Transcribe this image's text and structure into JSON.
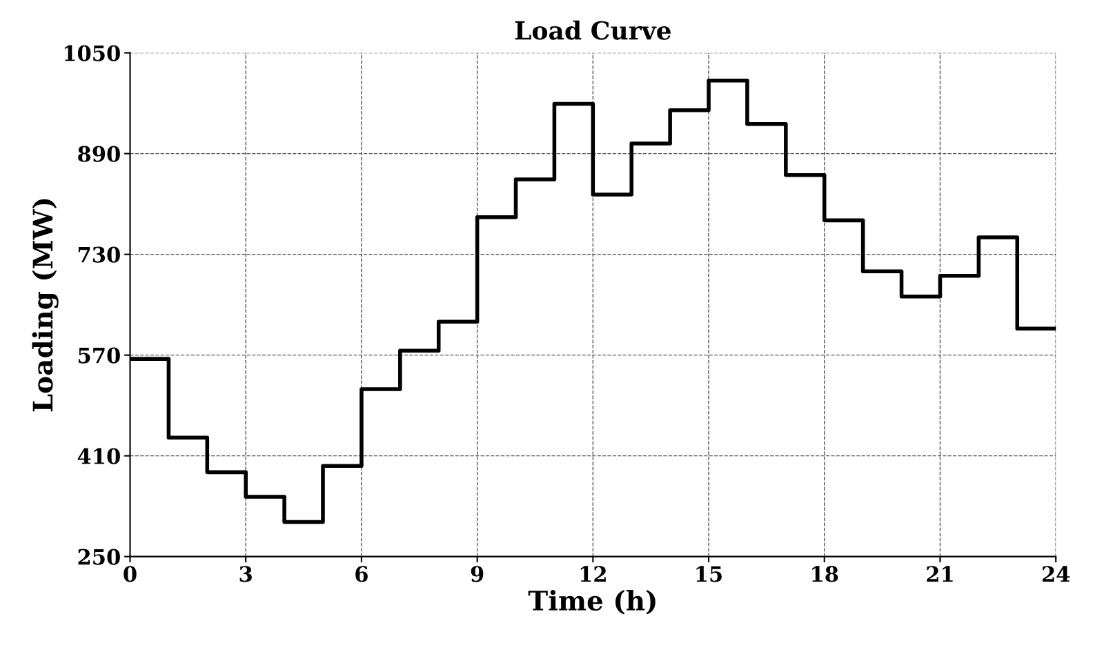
{
  "chart_data": {
    "type": "step",
    "title": "Load Curve",
    "xlabel": "Time (h)",
    "ylabel": "Loading (MW)",
    "x": [
      0,
      1,
      2,
      3,
      4,
      5,
      6,
      7,
      8,
      9,
      10,
      11,
      12,
      13,
      14,
      15,
      16,
      17,
      18,
      19,
      20,
      21,
      22,
      23,
      24
    ],
    "series": [
      {
        "color": "#000000",
        "values": [
          564,
          439,
          384,
          345,
          305,
          394,
          516,
          577,
          623,
          789,
          849,
          969,
          825,
          906,
          959,
          1006,
          937,
          856,
          784,
          703,
          663,
          696,
          757,
          612,
          612
        ]
      }
    ],
    "xlim": [
      0,
      24
    ],
    "xticks": [
      0,
      3,
      6,
      9,
      12,
      15,
      18,
      21,
      24
    ],
    "ylim": [
      250,
      1050
    ],
    "yticks": [
      250,
      410,
      570,
      730,
      890,
      1050
    ],
    "grid": true,
    "line_style": "solid"
  }
}
